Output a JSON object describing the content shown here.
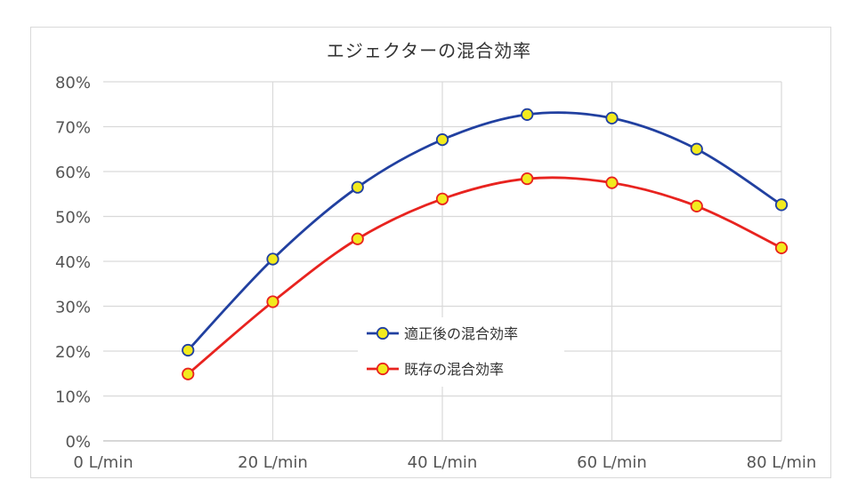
{
  "chart_data": {
    "type": "line",
    "title": "エジェクターの混合効率",
    "x": [
      10,
      20,
      30,
      40,
      50,
      60,
      70,
      80
    ],
    "xlim": [
      0,
      80
    ],
    "x_ticks": [
      0,
      20,
      40,
      60,
      80
    ],
    "x_tick_labels": [
      "0 L/min",
      "20 L/min",
      "40 L/min",
      "60 L/min",
      "80 L/min"
    ],
    "ylim": [
      0,
      0.8
    ],
    "y_ticks": [
      0,
      0.1,
      0.2,
      0.3,
      0.4,
      0.5,
      0.6,
      0.7,
      0.8
    ],
    "y_tick_labels": [
      "0%",
      "10%",
      "20%",
      "30%",
      "40%",
      "50%",
      "60%",
      "70%",
      "80%"
    ],
    "xlabel": "",
    "ylabel": "",
    "grid": true,
    "legend_position": "center",
    "series": [
      {
        "name": "適正後の混合効率",
        "values": [
          0.202,
          0.405,
          0.565,
          0.671,
          0.727,
          0.719,
          0.65,
          0.526
        ],
        "line_color": "#2140a0",
        "marker_fill": "#f2ea1e",
        "marker_edge": "#2140a0"
      },
      {
        "name": "既存の混合効率",
        "values": [
          0.149,
          0.31,
          0.45,
          0.539,
          0.584,
          0.575,
          0.523,
          0.43
        ],
        "line_color": "#e8231f",
        "marker_fill": "#f2ea1e",
        "marker_edge": "#e8231f"
      }
    ]
  }
}
